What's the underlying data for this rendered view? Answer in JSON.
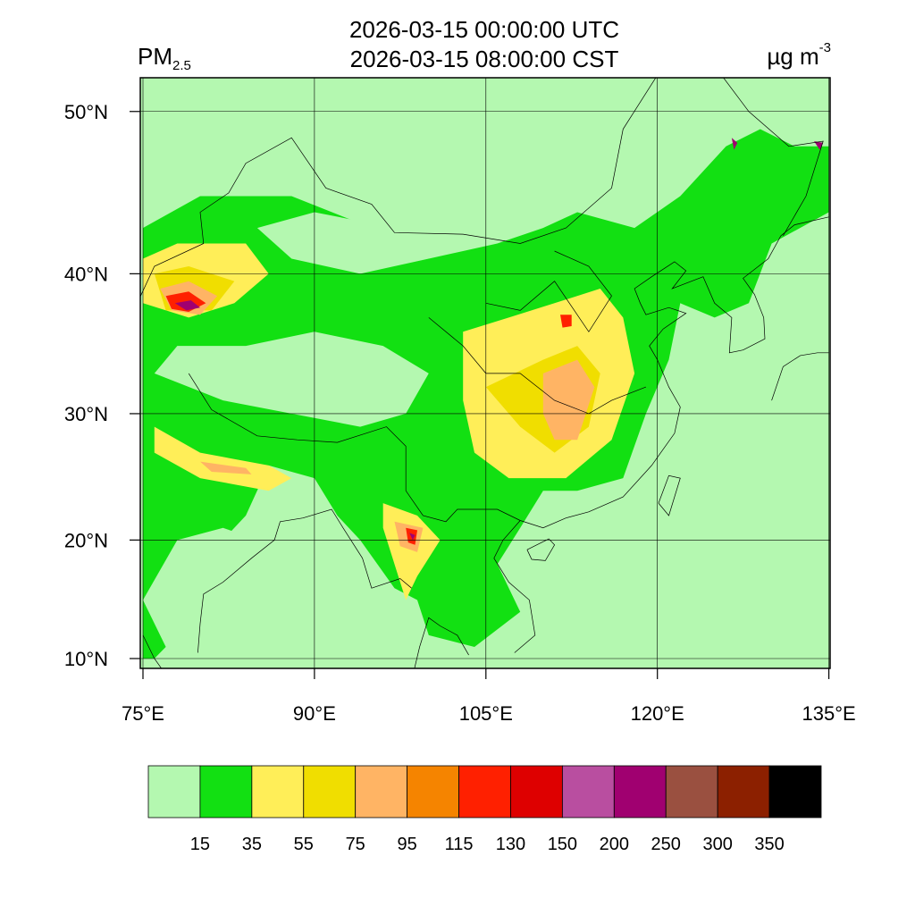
{
  "map": {
    "title_utc": "2026-03-15 00:00:00 UTC",
    "title_local": "2026-03-15 08:00:00 CST",
    "variable": {
      "name": "PM",
      "subscript": "2.5"
    },
    "units": {
      "base": "µg m",
      "superscript": "-3"
    },
    "lat_ticks": [
      {
        "value": 10,
        "label": "10°N"
      },
      {
        "value": 20,
        "label": "20°N"
      },
      {
        "value": 30,
        "label": "30°N"
      },
      {
        "value": 40,
        "label": "40°N"
      },
      {
        "value": 50,
        "label": "50°N"
      }
    ],
    "lon_ticks": [
      {
        "value": 75,
        "label": "75°E"
      },
      {
        "value": 90,
        "label": "90°E"
      },
      {
        "value": 105,
        "label": "105°E"
      },
      {
        "value": 120,
        "label": "120°E"
      },
      {
        "value": 135,
        "label": "135°E"
      }
    ],
    "colorbar": {
      "levels": [
        15,
        35,
        55,
        75,
        95,
        115,
        130,
        150,
        200,
        250,
        300,
        350
      ],
      "colors": [
        "#b4f8b0",
        "#12e012",
        "#ffee58",
        "#f0de00",
        "#ffb464",
        "#f58400",
        "#ff2000",
        "#de0000",
        "#b94ea0",
        "#a00070",
        "#9a5040",
        "#8c2000",
        "#000000"
      ]
    }
  }
}
